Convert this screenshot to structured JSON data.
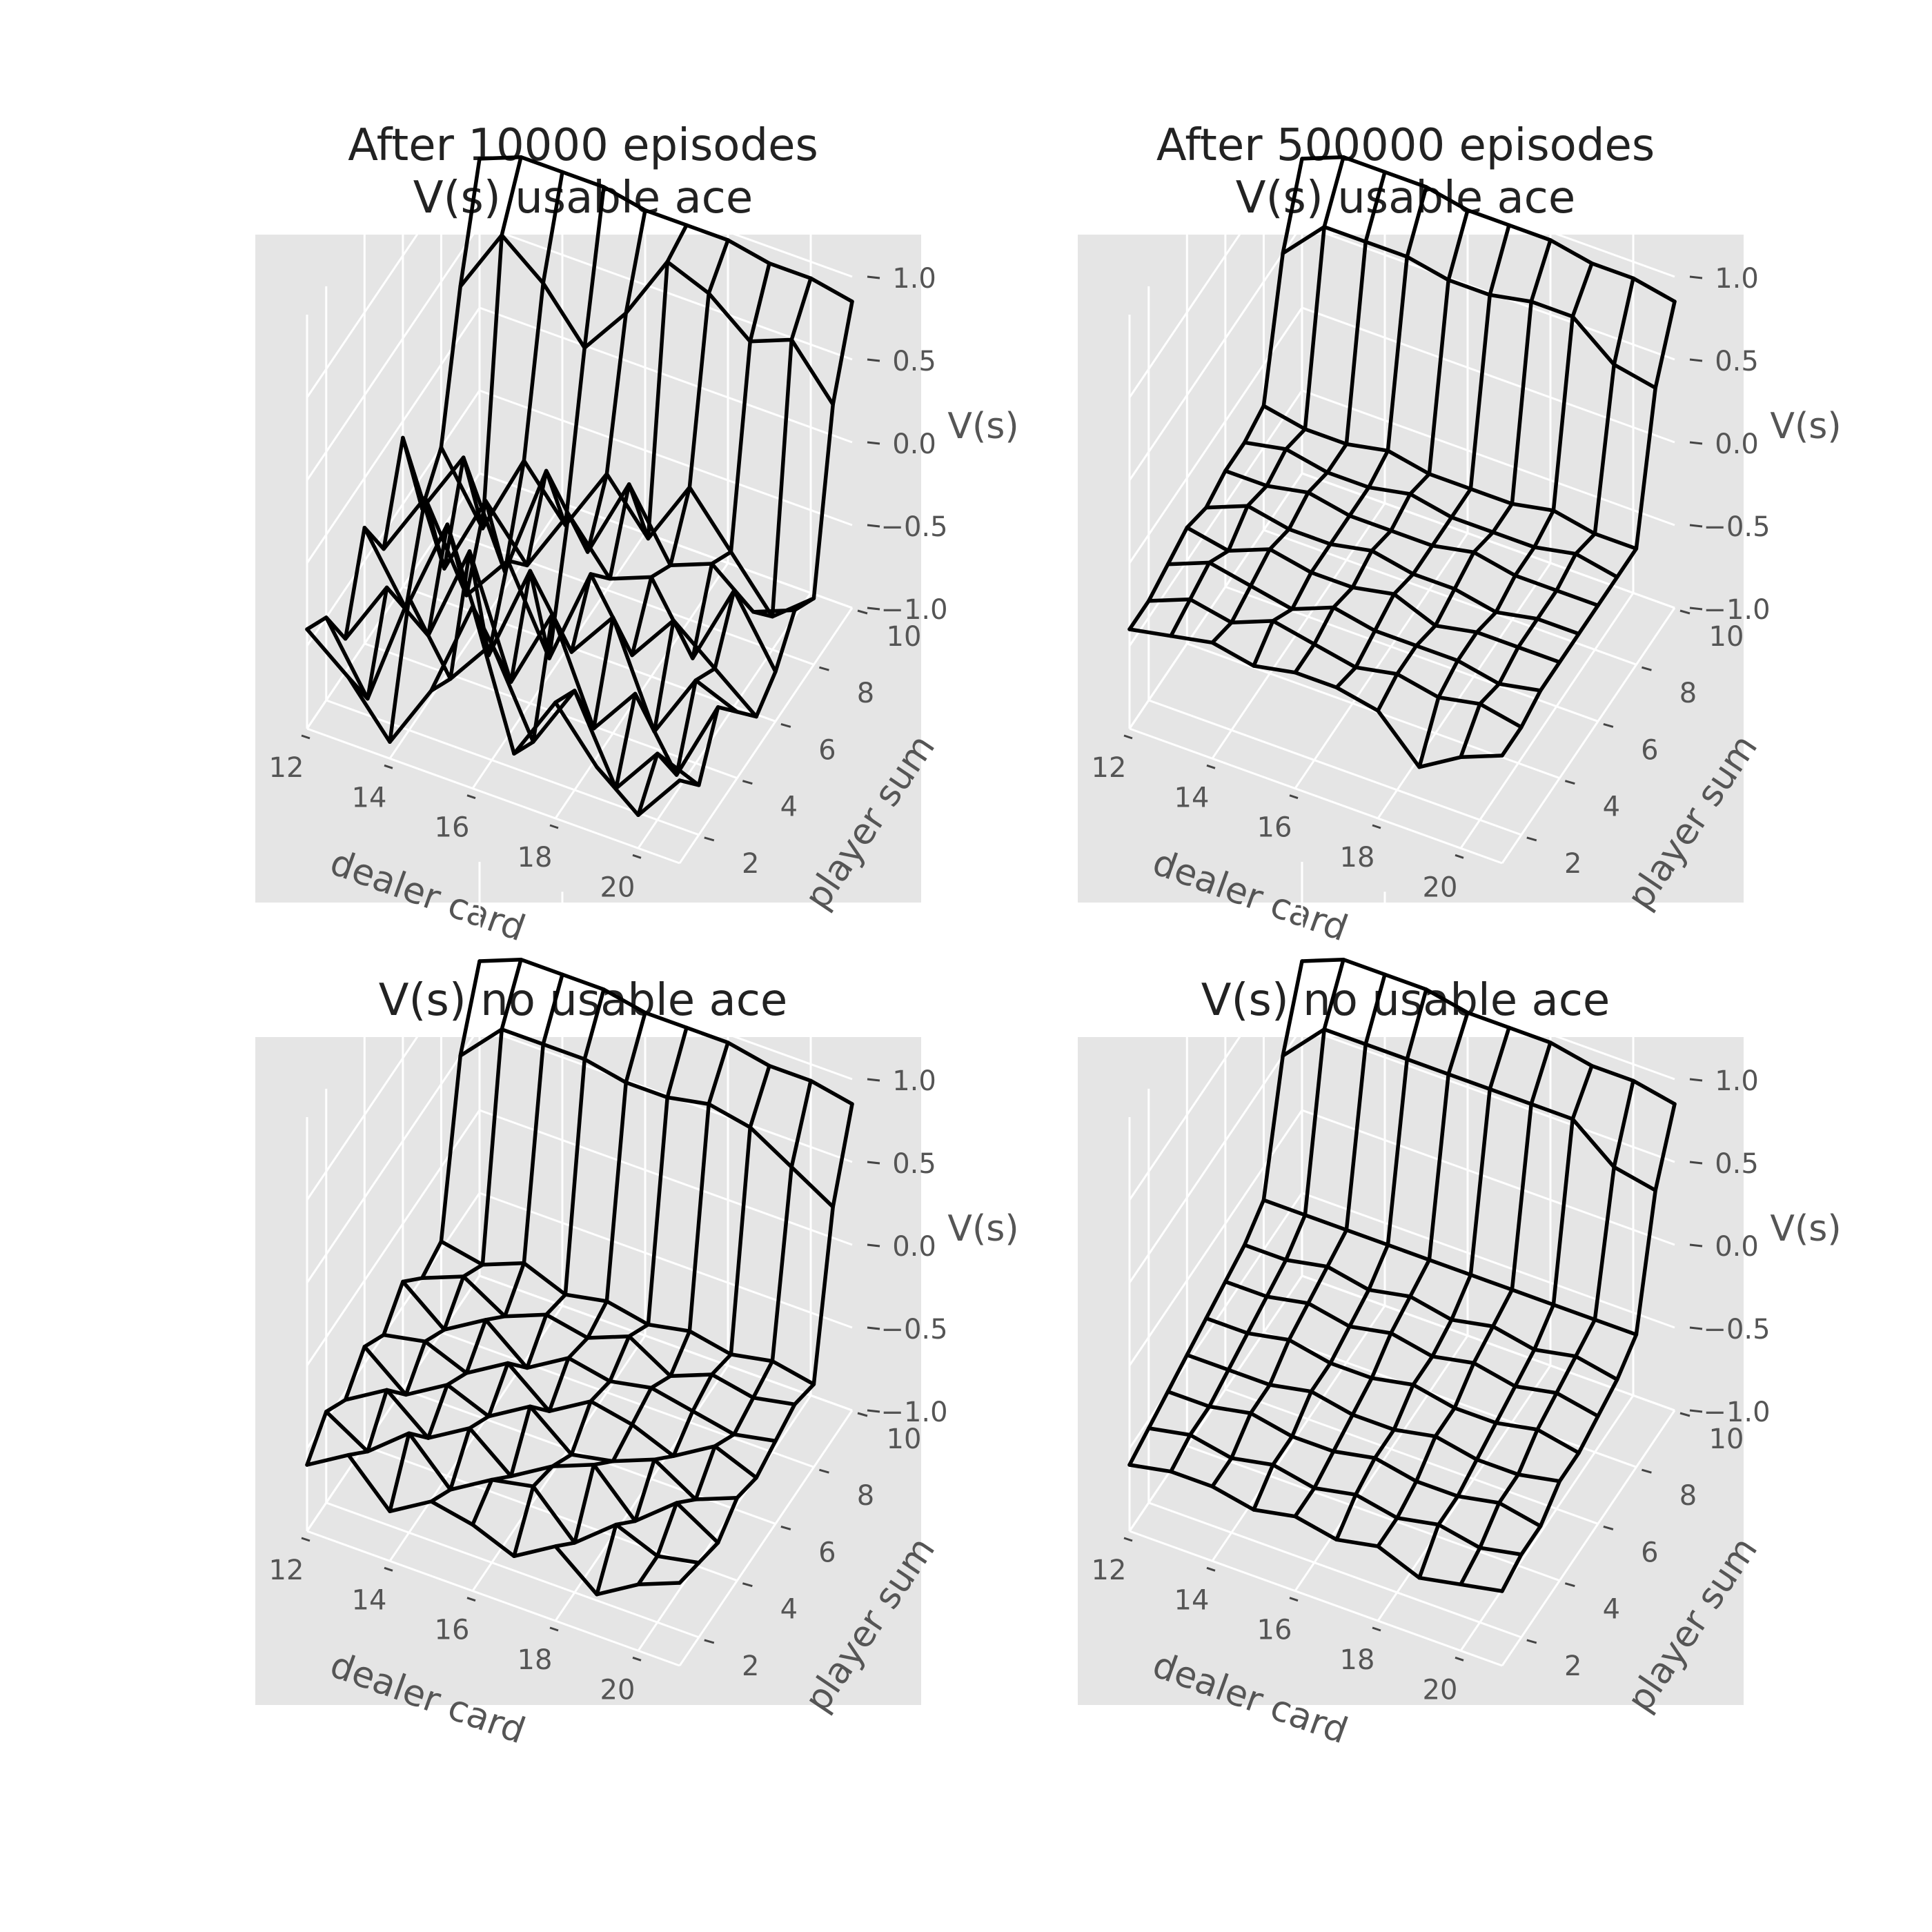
{
  "chart_data": [
    {
      "type": "surface",
      "title_line1": "After 10000 episodes",
      "title_line2": "V(s) usable ace",
      "xlabel": "dealer card",
      "ylabel": "player sum",
      "zlabel": "V(s)",
      "x": [
        12,
        13,
        14,
        15,
        16,
        17,
        18,
        19,
        20,
        21
      ],
      "y": [
        1,
        2,
        3,
        4,
        5,
        6,
        7,
        8,
        9,
        10
      ],
      "x_ticks": [
        "12",
        "14",
        "16",
        "18",
        "20"
      ],
      "y_ticks": [
        "2",
        "4",
        "6",
        "8",
        "10"
      ],
      "z_ticks": [
        "−1.0",
        "−0.5",
        "0.0",
        "0.5",
        "1.0"
      ],
      "zlim": [
        -1.0,
        1.0
      ],
      "z": [
        [
          -0.4,
          -0.6,
          -0.9,
          -0.5,
          0.1,
          -0.7,
          -0.3,
          -0.6,
          -0.8,
          -0.5
        ],
        [
          -0.5,
          -0.9,
          -0.2,
          -0.6,
          -0.3,
          -0.8,
          -0.4,
          -0.9,
          -0.6,
          -0.7
        ],
        [
          -0.8,
          -0.4,
          -0.6,
          0.0,
          -0.7,
          -0.2,
          -0.8,
          -0.5,
          -0.9,
          -0.4
        ],
        [
          -0.3,
          -0.7,
          -0.1,
          -0.8,
          -0.2,
          -0.6,
          -0.3,
          -0.9,
          -0.5,
          -0.6
        ],
        [
          -0.6,
          -0.2,
          -0.7,
          -0.4,
          -0.9,
          -0.3,
          -0.7,
          -0.4,
          -0.6,
          -0.8
        ],
        [
          -0.1,
          -0.8,
          -0.3,
          -0.6,
          -0.2,
          -0.5,
          -0.4,
          -0.8,
          -0.3,
          -0.7
        ],
        [
          -0.7,
          -0.3,
          -0.9,
          -0.2,
          -0.6,
          -0.1,
          -0.5,
          -0.4,
          -0.6,
          -0.5
        ],
        [
          -0.5,
          -0.9,
          -0.4,
          -0.7,
          -0.3,
          -0.6,
          -0.2,
          -0.5,
          -0.8,
          -0.6
        ],
        [
          0.3,
          0.7,
          0.5,
          0.2,
          0.5,
          0.9,
          0.8,
          0.6,
          0.7,
          0.4
        ],
        [
          0.9,
          1.0,
          1.0,
          1.0,
          0.95,
          0.95,
          0.95,
          0.9,
          0.9,
          0.85
        ]
      ]
    },
    {
      "type": "surface",
      "title_line1": "After 500000 episodes",
      "title_line2": "V(s) usable ace",
      "xlabel": "dealer card",
      "ylabel": "player sum",
      "zlabel": "V(s)",
      "x": [
        12,
        13,
        14,
        15,
        16,
        17,
        18,
        19,
        20,
        21
      ],
      "y": [
        1,
        2,
        3,
        4,
        5,
        6,
        7,
        8,
        9,
        10
      ],
      "x_ticks": [
        "12",
        "14",
        "16",
        "18",
        "20"
      ],
      "y_ticks": [
        "2",
        "4",
        "6",
        "8",
        "10"
      ],
      "z_ticks": [
        "−1.0",
        "−0.5",
        "0.0",
        "0.5",
        "1.0"
      ],
      "zlim": [
        -1.0,
        1.0
      ],
      "z": [
        [
          -0.4,
          -0.35,
          -0.3,
          -0.35,
          -0.3,
          -0.3,
          -0.35,
          -0.6,
          -0.45,
          -0.35
        ],
        [
          -0.4,
          -0.3,
          -0.35,
          -0.25,
          -0.3,
          -0.35,
          -0.3,
          -0.35,
          -0.3,
          -0.35
        ],
        [
          -0.35,
          -0.25,
          -0.3,
          -0.35,
          -0.25,
          -0.3,
          -0.3,
          -0.3,
          -0.35,
          -0.3
        ],
        [
          -0.3,
          -0.35,
          -0.25,
          -0.3,
          -0.3,
          -0.25,
          -0.35,
          -0.3,
          -0.3,
          -0.3
        ],
        [
          -0.35,
          -0.25,
          -0.3,
          -0.3,
          -0.25,
          -0.3,
          -0.3,
          -0.35,
          -0.3,
          -0.3
        ],
        [
          -0.3,
          -0.3,
          -0.25,
          -0.3,
          -0.3,
          -0.3,
          -0.25,
          -0.3,
          -0.3,
          -0.3
        ],
        [
          -0.3,
          -0.25,
          -0.3,
          -0.3,
          -0.25,
          -0.3,
          -0.3,
          -0.3,
          -0.25,
          -0.3
        ],
        [
          -0.25,
          -0.3,
          -0.3,
          -0.25,
          -0.3,
          -0.3,
          -0.3,
          -0.25,
          -0.3,
          -0.3
        ],
        [
          0.5,
          0.75,
          0.75,
          0.75,
          0.7,
          0.7,
          0.75,
          0.75,
          0.55,
          0.5
        ],
        [
          0.9,
          1.0,
          1.0,
          1.0,
          0.95,
          0.95,
          0.95,
          0.9,
          0.9,
          0.85
        ]
      ]
    },
    {
      "type": "surface",
      "title_line1": "",
      "title_line2": "V(s) no usable ace",
      "xlabel": "dealer card",
      "ylabel": "player sum",
      "zlabel": "V(s)",
      "x": [
        12,
        13,
        14,
        15,
        16,
        17,
        18,
        19,
        20,
        21
      ],
      "y": [
        1,
        2,
        3,
        4,
        5,
        6,
        7,
        8,
        9,
        10
      ],
      "x_ticks": [
        "12",
        "14",
        "16",
        "18",
        "20"
      ],
      "y_ticks": [
        "2",
        "4",
        "6",
        "8",
        "10"
      ],
      "z_ticks": [
        "−1.0",
        "−0.5",
        "0.0",
        "0.5",
        "1.0"
      ],
      "zlim": [
        -1.0,
        1.0
      ],
      "z": [
        [
          -0.6,
          -0.45,
          -0.7,
          -0.55,
          -0.6,
          -0.7,
          -0.55,
          -0.75,
          -0.6,
          -0.5
        ],
        [
          -0.45,
          -0.6,
          -0.4,
          -0.65,
          -0.5,
          -0.45,
          -0.7,
          -0.5,
          -0.6,
          -0.55
        ],
        [
          -0.55,
          -0.4,
          -0.6,
          -0.45,
          -0.65,
          -0.5,
          -0.4,
          -0.65,
          -0.45,
          -0.6
        ],
        [
          -0.4,
          -0.6,
          -0.45,
          -0.55,
          -0.4,
          -0.6,
          -0.55,
          -0.45,
          -0.6,
          -0.5
        ],
        [
          -0.5,
          -0.45,
          -0.55,
          -0.4,
          -0.6,
          -0.45,
          -0.5,
          -0.6,
          -0.45,
          -0.55
        ],
        [
          -0.35,
          -0.55,
          -0.4,
          -0.6,
          -0.45,
          -0.5,
          -0.45,
          -0.5,
          -0.55,
          -0.5
        ],
        [
          -0.5,
          -0.4,
          -0.55,
          -0.45,
          -0.5,
          -0.4,
          -0.55,
          -0.45,
          -0.5,
          -0.45
        ],
        [
          -0.45,
          -0.5,
          -0.4,
          -0.5,
          -0.45,
          -0.5,
          -0.45,
          -0.5,
          -0.45,
          -0.5
        ],
        [
          0.5,
          0.75,
          0.75,
          0.75,
          0.7,
          0.7,
          0.75,
          0.7,
          0.55,
          0.4
        ],
        [
          0.9,
          1.0,
          1.0,
          1.0,
          0.95,
          0.95,
          0.95,
          0.9,
          0.9,
          0.85
        ]
      ]
    },
    {
      "type": "surface",
      "title_line1": "",
      "title_line2": "V(s) no usable ace",
      "xlabel": "dealer card",
      "ylabel": "player sum",
      "zlabel": "V(s)",
      "x": [
        12,
        13,
        14,
        15,
        16,
        17,
        18,
        19,
        20,
        21
      ],
      "y": [
        1,
        2,
        3,
        4,
        5,
        6,
        7,
        8,
        9,
        10
      ],
      "x_ticks": [
        "12",
        "14",
        "16",
        "18",
        "20"
      ],
      "y_ticks": [
        "2",
        "4",
        "6",
        "8",
        "10"
      ],
      "z_ticks": [
        "−1.0",
        "−0.5",
        "0.0",
        "0.5",
        "1.0"
      ],
      "zlim": [
        -1.0,
        1.0
      ],
      "z": [
        [
          -0.6,
          -0.55,
          -0.55,
          -0.6,
          -0.55,
          -0.6,
          -0.55,
          -0.65,
          -0.6,
          -0.55
        ],
        [
          -0.55,
          -0.5,
          -0.55,
          -0.5,
          -0.55,
          -0.5,
          -0.55,
          -0.5,
          -0.55,
          -0.5
        ],
        [
          -0.5,
          -0.5,
          -0.45,
          -0.5,
          -0.5,
          -0.45,
          -0.5,
          -0.5,
          -0.45,
          -0.5
        ],
        [
          -0.45,
          -0.45,
          -0.45,
          -0.4,
          -0.45,
          -0.45,
          -0.4,
          -0.45,
          -0.45,
          -0.4
        ],
        [
          -0.4,
          -0.4,
          -0.35,
          -0.4,
          -0.4,
          -0.35,
          -0.4,
          -0.4,
          -0.35,
          -0.4
        ],
        [
          -0.35,
          -0.35,
          -0.3,
          -0.35,
          -0.3,
          -0.35,
          -0.3,
          -0.35,
          -0.3,
          -0.35
        ],
        [
          -0.3,
          -0.3,
          -0.25,
          -0.3,
          -0.25,
          -0.3,
          -0.25,
          -0.3,
          -0.25,
          -0.3
        ],
        [
          -0.2,
          -0.2,
          -0.2,
          -0.2,
          -0.2,
          -0.2,
          -0.2,
          -0.2,
          -0.2,
          -0.2
        ],
        [
          0.5,
          0.75,
          0.75,
          0.75,
          0.75,
          0.75,
          0.75,
          0.75,
          0.55,
          0.5
        ],
        [
          0.9,
          1.0,
          1.0,
          1.0,
          0.95,
          0.95,
          0.95,
          0.9,
          0.9,
          0.85
        ]
      ]
    }
  ]
}
